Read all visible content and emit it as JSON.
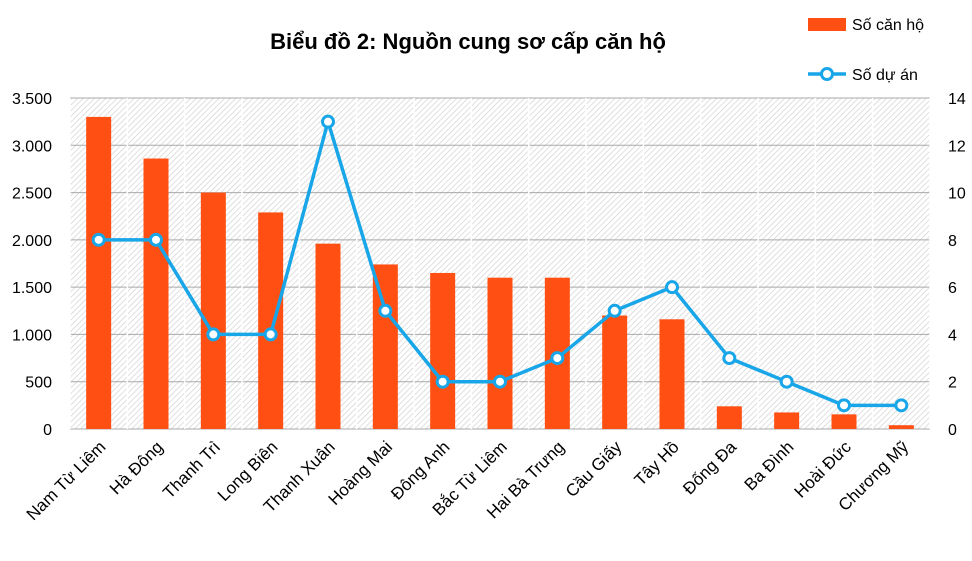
{
  "chart_data": {
    "type": "bar",
    "title": "Biểu đồ 2: Nguồn cung sơ cấp căn hộ",
    "categories": [
      "Nam Từ Liêm",
      "Hà Đông",
      "Thanh Trì",
      "Long Biên",
      "Thanh Xuân",
      "Hoàng Mai",
      "Đông Anh",
      "Bắc Từ Liêm",
      "Hai Bà Trưng",
      "Cầu Giấy",
      "Tây Hồ",
      "Đống Đa",
      "Ba Đình",
      "Hoài Đức",
      "Chương Mỹ"
    ],
    "series": [
      {
        "name": "Số căn hộ",
        "type": "bar",
        "axis": "left",
        "color": "#FF4F12",
        "values": [
          3300,
          2860,
          2500,
          2290,
          1960,
          1740,
          1650,
          1600,
          1600,
          1200,
          1160,
          240,
          175,
          155,
          40
        ]
      },
      {
        "name": "Số dự án",
        "type": "line",
        "axis": "right",
        "color": "#18A6E8",
        "values": [
          8,
          8,
          4,
          4,
          13,
          5,
          2,
          2,
          3,
          5,
          6,
          3,
          2,
          1,
          1
        ]
      }
    ],
    "y_left": {
      "range": [
        0,
        3500
      ],
      "ticks": [
        0,
        500,
        1000,
        1500,
        2000,
        2500,
        3000,
        3500
      ],
      "tick_labels": [
        "0",
        "500",
        "1.000",
        "1.500",
        "2.000",
        "2.500",
        "3.000",
        "3.500"
      ]
    },
    "y_right": {
      "range": [
        0,
        14
      ],
      "ticks": [
        0,
        2,
        4,
        6,
        8,
        10,
        12,
        14
      ],
      "tick_labels": [
        "0",
        "2",
        "4",
        "6",
        "8",
        "10",
        "12",
        "14"
      ]
    },
    "grid": true,
    "legend_position": "top-right"
  }
}
